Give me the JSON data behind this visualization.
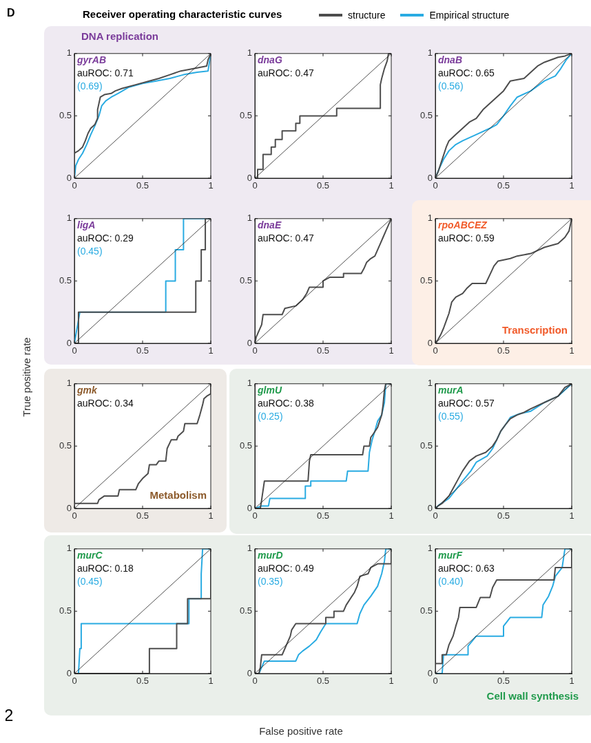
{
  "chart_data": [
    {
      "type": "other",
      "title": "Receiver operating characteristic curves",
      "xlabel": "False positive rate",
      "ylabel": "True positive rate",
      "annotations": [
        "D",
        "2"
      ]
    },
    {
      "type": "line",
      "title": "gyrAB",
      "subtitle": "DNA replication",
      "annotations": [
        "auROC: 0.71",
        "(0.69)"
      ],
      "xlim": [
        0,
        1
      ],
      "ylim": [
        0,
        1
      ],
      "xticks": [
        0,
        0.5,
        1
      ],
      "yticks": [
        0,
        0.5,
        1
      ],
      "legend": "top",
      "series": [
        {
          "color": "#222222",
          "x": [
            0,
            1
          ],
          "values": [
            0,
            1
          ]
        },
        {
          "name": "structure",
          "color": "#4d4d4d",
          "x": [
            0,
            0,
            0.03,
            0.06,
            0.08,
            0.1,
            0.12,
            0.15,
            0.17,
            0.17,
            0.18,
            0.19,
            0.22,
            0.27,
            0.3,
            0.35,
            0.45,
            0.55,
            0.62,
            0.7,
            0.78,
            0.88,
            0.97,
            0.98,
            1
          ],
          "values": [
            0,
            0.2,
            0.22,
            0.25,
            0.3,
            0.36,
            0.4,
            0.43,
            0.48,
            0.55,
            0.6,
            0.65,
            0.67,
            0.68,
            0.7,
            0.72,
            0.75,
            0.78,
            0.8,
            0.83,
            0.86,
            0.88,
            0.9,
            0.95,
            1
          ]
        },
        {
          "name": "Empirical structure",
          "color": "#29abe2",
          "x": [
            0,
            0.01,
            0.03,
            0.06,
            0.09,
            0.12,
            0.15,
            0.18,
            0.2,
            0.23,
            0.27,
            0.32,
            0.4,
            0.5,
            0.6,
            0.7,
            0.8,
            0.9,
            0.98,
            0.99,
            1
          ],
          "values": [
            0,
            0.1,
            0.15,
            0.2,
            0.27,
            0.35,
            0.42,
            0.5,
            0.58,
            0.62,
            0.65,
            0.68,
            0.73,
            0.76,
            0.78,
            0.8,
            0.83,
            0.85,
            0.86,
            0.93,
            1
          ]
        }
      ]
    },
    {
      "type": "line",
      "title": "dnaG",
      "annotations": [
        "auROC: 0.47"
      ],
      "xlim": [
        0,
        1
      ],
      "ylim": [
        0,
        1
      ],
      "xticks": [
        0,
        0.5,
        1
      ],
      "yticks": [
        0,
        0.5,
        1
      ],
      "series": [
        {
          "color": "#222222",
          "x": [
            0,
            1
          ],
          "values": [
            0,
            1
          ]
        },
        {
          "color": "#4d4d4d",
          "x": [
            0,
            0.02,
            0.02,
            0.06,
            0.06,
            0.12,
            0.12,
            0.15,
            0.15,
            0.2,
            0.2,
            0.3,
            0.3,
            0.33,
            0.33,
            0.6,
            0.6,
            0.92,
            0.92,
            0.93,
            0.95,
            0.97,
            0.98,
            1
          ],
          "values": [
            0,
            0,
            0.07,
            0.07,
            0.19,
            0.19,
            0.25,
            0.25,
            0.31,
            0.31,
            0.38,
            0.38,
            0.44,
            0.44,
            0.5,
            0.5,
            0.56,
            0.56,
            0.75,
            0.8,
            0.88,
            0.94,
            1,
            1
          ]
        }
      ]
    },
    {
      "type": "line",
      "title": "dnaB",
      "annotations": [
        "auROC: 0.65",
        "(0.56)"
      ],
      "xlim": [
        0,
        1
      ],
      "ylim": [
        0,
        1
      ],
      "xticks": [
        0,
        0.5,
        1
      ],
      "yticks": [
        0,
        0.5,
        1
      ],
      "series": [
        {
          "color": "#222222",
          "x": [
            0,
            1
          ],
          "values": [
            0,
            1
          ]
        },
        {
          "color": "#4d4d4d",
          "x": [
            0,
            0.02,
            0.05,
            0.08,
            0.1,
            0.15,
            0.2,
            0.25,
            0.3,
            0.35,
            0.4,
            0.45,
            0.5,
            0.55,
            0.65,
            0.7,
            0.75,
            0.8,
            0.9,
            0.95,
            1
          ],
          "values": [
            0,
            0.05,
            0.15,
            0.25,
            0.3,
            0.35,
            0.4,
            0.45,
            0.48,
            0.55,
            0.6,
            0.65,
            0.7,
            0.78,
            0.8,
            0.85,
            0.9,
            0.93,
            0.97,
            0.98,
            1
          ]
        },
        {
          "color": "#29abe2",
          "x": [
            0,
            0.03,
            0.06,
            0.1,
            0.15,
            0.2,
            0.3,
            0.4,
            0.45,
            0.5,
            0.55,
            0.6,
            0.7,
            0.8,
            0.88,
            0.92,
            0.96,
            1
          ],
          "values": [
            0,
            0.08,
            0.15,
            0.22,
            0.27,
            0.3,
            0.35,
            0.4,
            0.43,
            0.5,
            0.58,
            0.65,
            0.7,
            0.78,
            0.82,
            0.88,
            0.95,
            1
          ]
        }
      ]
    },
    {
      "type": "line",
      "title": "ligA",
      "annotations": [
        "auROC: 0.29",
        "(0.45)"
      ],
      "xlim": [
        0,
        1
      ],
      "ylim": [
        0,
        1
      ],
      "xticks": [
        0,
        0.5,
        1
      ],
      "yticks": [
        0,
        0.5,
        1
      ],
      "series": [
        {
          "color": "#222222",
          "x": [
            0,
            1
          ],
          "values": [
            0,
            1
          ]
        },
        {
          "color": "#4d4d4d",
          "x": [
            0,
            0.03,
            0.03,
            0.89,
            0.89,
            0.93,
            0.93,
            0.96,
            0.96,
            1
          ],
          "values": [
            0,
            0,
            0.25,
            0.25,
            0.5,
            0.5,
            0.75,
            0.75,
            1,
            1
          ]
        },
        {
          "color": "#29abe2",
          "x": [
            0,
            0.04,
            0.67,
            0.67,
            0.74,
            0.74,
            0.8,
            0.8,
            1
          ],
          "values": [
            0,
            0.25,
            0.25,
            0.5,
            0.5,
            0.75,
            0.75,
            1,
            1
          ]
        }
      ]
    },
    {
      "type": "line",
      "title": "dnaE",
      "annotations": [
        "auROC: 0.47"
      ],
      "xlim": [
        0,
        1
      ],
      "ylim": [
        0,
        1
      ],
      "xticks": [
        0,
        0.5,
        1
      ],
      "yticks": [
        0,
        0.5,
        1
      ],
      "series": [
        {
          "color": "#222222",
          "x": [
            0,
            1
          ],
          "values": [
            0,
            1
          ]
        },
        {
          "color": "#4d4d4d",
          "x": [
            0,
            0.01,
            0.03,
            0.05,
            0.06,
            0.2,
            0.22,
            0.3,
            0.35,
            0.38,
            0.4,
            0.5,
            0.5,
            0.55,
            0.65,
            0.65,
            0.78,
            0.8,
            0.82,
            0.85,
            0.88,
            0.9,
            0.92,
            0.94,
            0.96,
            0.98,
            1
          ],
          "values": [
            0,
            0.05,
            0.1,
            0.15,
            0.23,
            0.23,
            0.28,
            0.3,
            0.35,
            0.4,
            0.45,
            0.45,
            0.5,
            0.53,
            0.53,
            0.56,
            0.56,
            0.6,
            0.65,
            0.68,
            0.7,
            0.75,
            0.8,
            0.85,
            0.9,
            0.95,
            1
          ]
        }
      ]
    },
    {
      "type": "line",
      "title": "rpoABCEZ",
      "subtitle": "Transcription",
      "annotations": [
        "auROC: 0.59"
      ],
      "xlim": [
        0,
        1
      ],
      "ylim": [
        0,
        1
      ],
      "xticks": [
        0,
        0.5,
        1
      ],
      "yticks": [
        0,
        0.5,
        1
      ],
      "series": [
        {
          "color": "#222222",
          "x": [
            0,
            1
          ],
          "values": [
            0,
            1
          ]
        },
        {
          "color": "#4d4d4d",
          "x": [
            0,
            0.02,
            0.04,
            0.06,
            0.08,
            0.1,
            0.12,
            0.15,
            0.2,
            0.23,
            0.27,
            0.37,
            0.4,
            0.43,
            0.46,
            0.55,
            0.6,
            0.7,
            0.8,
            0.9,
            0.95,
            0.98,
            1
          ],
          "values": [
            0,
            0.03,
            0.07,
            0.12,
            0.18,
            0.24,
            0.33,
            0.37,
            0.4,
            0.44,
            0.48,
            0.48,
            0.55,
            0.62,
            0.66,
            0.68,
            0.7,
            0.72,
            0.77,
            0.8,
            0.85,
            0.9,
            1
          ]
        }
      ]
    },
    {
      "type": "line",
      "title": "gmk",
      "subtitle": "Metabolism",
      "annotations": [
        "auROC: 0.34"
      ],
      "xlim": [
        0,
        1
      ],
      "ylim": [
        0,
        1
      ],
      "xticks": [
        0,
        0.5,
        1
      ],
      "yticks": [
        0,
        0.5,
        1
      ],
      "series": [
        {
          "color": "#222222",
          "x": [
            0,
            1
          ],
          "values": [
            0,
            1
          ]
        },
        {
          "color": "#4d4d4d",
          "x": [
            0,
            0,
            0.17,
            0.18,
            0.22,
            0.32,
            0.33,
            0.45,
            0.47,
            0.5,
            0.54,
            0.55,
            0.6,
            0.62,
            0.67,
            0.68,
            0.71,
            0.75,
            0.76,
            0.8,
            0.81,
            0.9,
            0.92,
            0.94,
            0.95,
            0.97,
            1,
            1
          ],
          "values": [
            0,
            0.04,
            0.04,
            0.07,
            0.1,
            0.1,
            0.15,
            0.15,
            0.2,
            0.24,
            0.28,
            0.35,
            0.35,
            0.38,
            0.38,
            0.48,
            0.55,
            0.55,
            0.58,
            0.62,
            0.68,
            0.68,
            0.75,
            0.83,
            0.88,
            0.9,
            0.92,
            1
          ]
        }
      ]
    },
    {
      "type": "line",
      "title": "glmU",
      "annotations": [
        "auROC: 0.38",
        "(0.25)"
      ],
      "xlim": [
        0,
        1
      ],
      "ylim": [
        0,
        1
      ],
      "xticks": [
        0,
        0.5,
        1
      ],
      "yticks": [
        0,
        0.5,
        1
      ],
      "series": [
        {
          "color": "#222222",
          "x": [
            0,
            1
          ],
          "values": [
            0,
            1
          ]
        },
        {
          "color": "#4d4d4d",
          "x": [
            0,
            0.04,
            0.05,
            0.07,
            0.39,
            0.4,
            0.41,
            0.79,
            0.8,
            0.84,
            0.85,
            0.87,
            0.9,
            0.93,
            0.94,
            0.95,
            0.96,
            1
          ],
          "values": [
            0,
            0,
            0.07,
            0.22,
            0.22,
            0.38,
            0.43,
            0.43,
            0.5,
            0.5,
            0.57,
            0.6,
            0.65,
            0.75,
            0.83,
            0.95,
            1,
            1
          ]
        },
        {
          "color": "#29abe2",
          "x": [
            0,
            0.05,
            0.1,
            0.11,
            0.37,
            0.37,
            0.41,
            0.41,
            0.67,
            0.68,
            0.83,
            0.84,
            0.86,
            0.88,
            0.9,
            0.93,
            0.95,
            0.96,
            1
          ],
          "values": [
            0,
            0.02,
            0.02,
            0.08,
            0.08,
            0.18,
            0.18,
            0.22,
            0.22,
            0.3,
            0.3,
            0.45,
            0.55,
            0.62,
            0.7,
            0.75,
            0.85,
            1,
            1
          ]
        }
      ]
    },
    {
      "type": "line",
      "title": "murA",
      "annotations": [
        "auROC: 0.57",
        "(0.55)"
      ],
      "xlim": [
        0,
        1
      ],
      "ylim": [
        0,
        1
      ],
      "xticks": [
        0,
        0.5,
        1
      ],
      "yticks": [
        0,
        0.5,
        1
      ],
      "series": [
        {
          "color": "#222222",
          "x": [
            0,
            1
          ],
          "values": [
            0,
            1
          ]
        },
        {
          "color": "#4d4d4d",
          "x": [
            0,
            0.02,
            0.05,
            0.1,
            0.13,
            0.16,
            0.2,
            0.25,
            0.3,
            0.37,
            0.42,
            0.45,
            0.48,
            0.52,
            0.55,
            0.6,
            0.65,
            0.7,
            0.8,
            0.9,
            0.95,
            1
          ],
          "values": [
            0,
            0.02,
            0.04,
            0.1,
            0.16,
            0.22,
            0.3,
            0.38,
            0.42,
            0.45,
            0.5,
            0.55,
            0.62,
            0.68,
            0.72,
            0.75,
            0.77,
            0.8,
            0.85,
            0.9,
            0.97,
            1
          ]
        },
        {
          "color": "#29abe2",
          "x": [
            0,
            0.03,
            0.1,
            0.15,
            0.2,
            0.26,
            0.3,
            0.38,
            0.42,
            0.45,
            0.48,
            0.52,
            0.55,
            0.62,
            0.7,
            0.8,
            0.9,
            0.95,
            1
          ],
          "values": [
            0,
            0.03,
            0.08,
            0.15,
            0.22,
            0.3,
            0.37,
            0.42,
            0.48,
            0.55,
            0.62,
            0.68,
            0.73,
            0.76,
            0.78,
            0.85,
            0.9,
            0.95,
            1
          ]
        }
      ]
    },
    {
      "type": "line",
      "title": "murC",
      "annotations": [
        "auROC: 0.18",
        "(0.45)"
      ],
      "xlim": [
        0,
        1
      ],
      "ylim": [
        0,
        1
      ],
      "xticks": [
        0,
        0.5,
        1
      ],
      "yticks": [
        0,
        0.5,
        1
      ],
      "series": [
        {
          "color": "#222222",
          "x": [
            0,
            1
          ],
          "values": [
            0,
            1
          ]
        },
        {
          "color": "#4d4d4d",
          "x": [
            0,
            0.55,
            0.55,
            0.75,
            0.75,
            0.83,
            0.83,
            1,
            1
          ],
          "values": [
            0,
            0,
            0.2,
            0.2,
            0.4,
            0.4,
            0.6,
            0.6,
            1
          ]
        },
        {
          "color": "#29abe2",
          "x": [
            0,
            0.03,
            0.04,
            0.05,
            0.05,
            0.84,
            0.84,
            0.93,
            0.93,
            0.94,
            1
          ],
          "values": [
            0,
            0,
            0.2,
            0.2,
            0.4,
            0.4,
            0.6,
            0.6,
            0.8,
            1,
            1
          ]
        }
      ]
    },
    {
      "type": "line",
      "title": "murD",
      "annotations": [
        "auROC: 0.49",
        "(0.35)"
      ],
      "xlim": [
        0,
        1
      ],
      "ylim": [
        0,
        1
      ],
      "xticks": [
        0,
        0.5,
        1
      ],
      "yticks": [
        0,
        0.5,
        1
      ],
      "series": [
        {
          "color": "#222222",
          "x": [
            0,
            1
          ],
          "values": [
            0,
            1
          ]
        },
        {
          "color": "#4d4d4d",
          "x": [
            0,
            0.03,
            0.04,
            0.05,
            0.2,
            0.22,
            0.24,
            0.26,
            0.27,
            0.3,
            0.52,
            0.52,
            0.58,
            0.58,
            0.65,
            0.67,
            0.7,
            0.73,
            0.75,
            0.77,
            0.83,
            0.85,
            0.9,
            1,
            1
          ],
          "values": [
            0,
            0,
            0.05,
            0.15,
            0.15,
            0.2,
            0.25,
            0.3,
            0.35,
            0.4,
            0.4,
            0.45,
            0.45,
            0.5,
            0.5,
            0.55,
            0.6,
            0.65,
            0.7,
            0.78,
            0.8,
            0.85,
            0.88,
            0.88,
            1
          ]
        },
        {
          "color": "#29abe2",
          "x": [
            0,
            0.03,
            0.05,
            0.07,
            0.3,
            0.32,
            0.35,
            0.4,
            0.45,
            0.48,
            0.52,
            0.75,
            0.77,
            0.8,
            0.85,
            0.9,
            0.93,
            0.95,
            0.96,
            1
          ],
          "values": [
            0,
            0,
            0.05,
            0.1,
            0.1,
            0.15,
            0.18,
            0.22,
            0.27,
            0.33,
            0.4,
            0.4,
            0.48,
            0.55,
            0.62,
            0.7,
            0.8,
            0.9,
            1,
            1
          ]
        }
      ]
    },
    {
      "type": "line",
      "title": "murF",
      "subtitle": "Cell wall synthesis",
      "annotations": [
        "auROC: 0.63",
        "(0.40)"
      ],
      "xlim": [
        0,
        1
      ],
      "ylim": [
        0,
        1
      ],
      "xticks": [
        0,
        0.5,
        1
      ],
      "yticks": [
        0,
        0.5,
        1
      ],
      "series": [
        {
          "color": "#222222",
          "x": [
            0,
            1
          ],
          "values": [
            0,
            1
          ]
        },
        {
          "color": "#4d4d4d",
          "x": [
            0,
            0,
            0.05,
            0.05,
            0.08,
            0.1,
            0.13,
            0.15,
            0.17,
            0.18,
            0.3,
            0.33,
            0.4,
            0.42,
            0.45,
            0.87,
            0.88,
            1,
            1
          ],
          "values": [
            0,
            0.08,
            0.08,
            0.15,
            0.15,
            0.23,
            0.3,
            0.38,
            0.45,
            0.53,
            0.53,
            0.61,
            0.61,
            0.69,
            0.75,
            0.75,
            0.85,
            0.85,
            1
          ]
        },
        {
          "color": "#29abe2",
          "x": [
            0,
            0.05,
            0.06,
            0.24,
            0.24,
            0.3,
            0.5,
            0.5,
            0.55,
            0.78,
            0.79,
            0.83,
            0.86,
            0.88,
            0.93,
            0.95,
            1
          ],
          "values": [
            0,
            0,
            0.15,
            0.15,
            0.22,
            0.3,
            0.3,
            0.38,
            0.45,
            0.45,
            0.55,
            0.62,
            0.7,
            0.78,
            0.85,
            1,
            1
          ]
        }
      ]
    }
  ]
}
